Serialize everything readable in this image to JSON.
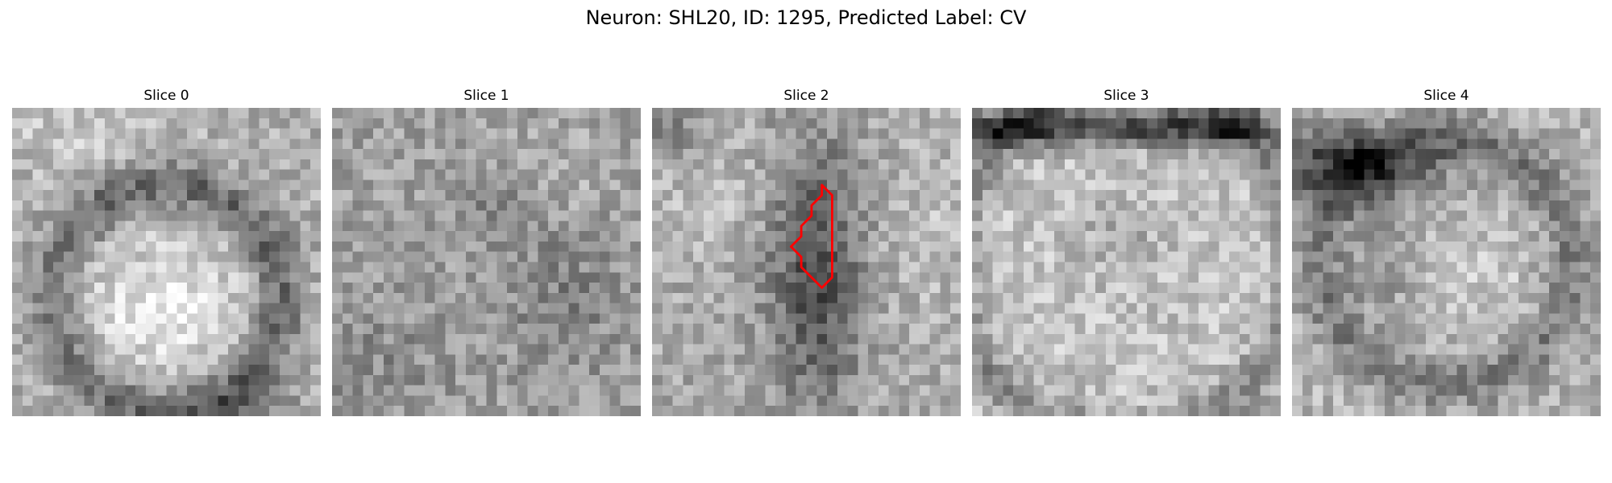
{
  "figure": {
    "title": "Neuron: SHL20, ID: 1295, Predicted Label: CV"
  },
  "slices": [
    {
      "title": "Slice 0",
      "pattern": "dark-ring-bright-center",
      "seed": 11,
      "has_mask": false
    },
    {
      "title": "Slice 1",
      "pattern": "noisy-mid-gray",
      "seed": 23,
      "has_mask": false
    },
    {
      "title": "Slice 2",
      "pattern": "dark-vertical-band",
      "seed": 37,
      "has_mask": true
    },
    {
      "title": "Slice 3",
      "pattern": "bright-with-dark-top",
      "seed": 41,
      "has_mask": false
    },
    {
      "title": "Slice 4",
      "pattern": "ring-dark-top-left",
      "seed": 59,
      "has_mask": false
    }
  ],
  "mask": {
    "color": "#ff0000",
    "outline": [
      [
        16.5,
        7.5
      ],
      [
        17.5,
        8.5
      ],
      [
        17.5,
        12.5
      ],
      [
        17.5,
        16.5
      ],
      [
        16.5,
        17.5
      ],
      [
        15.5,
        16.5
      ],
      [
        14.5,
        15.5
      ],
      [
        14.5,
        14.5
      ],
      [
        13.5,
        13.5
      ],
      [
        14.5,
        12.5
      ],
      [
        14.5,
        11.5
      ],
      [
        15.5,
        10.5
      ],
      [
        15.5,
        9.5
      ],
      [
        16.5,
        8.5
      ]
    ]
  },
  "grid_size": 30
}
